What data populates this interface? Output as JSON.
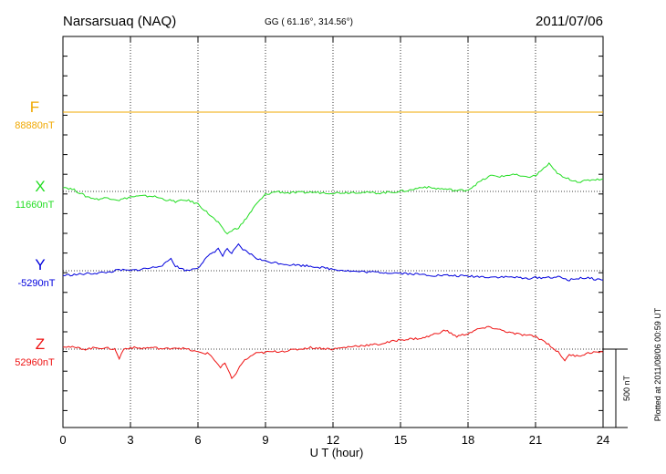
{
  "header": {
    "station": "Narsarsuaq (NAQ)",
    "coords": "GG ( 61.16°, 314.56°)",
    "date": "2011/07/06"
  },
  "plotted_note": "Plotted at 2011/08/06 00:59 UT",
  "chart_data": {
    "type": "line",
    "xlabel": "U T (hour)",
    "xlim": [
      0,
      24
    ],
    "xticks": [
      "0",
      "3",
      "6",
      "9",
      "12",
      "15",
      "18",
      "21",
      "24"
    ],
    "grid": true,
    "scale_bar": {
      "label": "500 nT",
      "value_nT": 500
    },
    "series": [
      {
        "name": "F",
        "baseline_label": "88880nT",
        "color": "#f0a800",
        "x": [
          0,
          24
        ],
        "y": [
          0,
          0
        ]
      },
      {
        "name": "X",
        "baseline_label": "11660nT",
        "color": "#22dd22",
        "x": [
          0,
          0.5,
          1,
          1.5,
          2,
          2.5,
          3,
          3.5,
          4,
          4.5,
          5,
          5.5,
          6,
          6.3,
          6.6,
          6.9,
          7.1,
          7.3,
          7.5,
          7.8,
          8,
          8.3,
          8.6,
          9,
          9.5,
          10,
          11,
          12,
          13,
          14,
          15,
          15.5,
          16,
          16.5,
          17,
          17.5,
          18,
          18.5,
          19,
          19.5,
          20,
          20.5,
          21,
          21.3,
          21.6,
          21.8,
          22.2,
          22.7,
          23,
          23.5,
          24
        ],
        "y": [
          30,
          10,
          -30,
          -50,
          -40,
          -55,
          -35,
          -30,
          -30,
          -50,
          -65,
          -55,
          -80,
          -120,
          -160,
          -200,
          -240,
          -270,
          -250,
          -230,
          -200,
          -140,
          -80,
          -20,
          0,
          -10,
          -5,
          -10,
          -5,
          -10,
          0,
          10,
          30,
          20,
          15,
          5,
          10,
          60,
          100,
          95,
          110,
          90,
          100,
          140,
          175,
          140,
          90,
          70,
          60,
          75,
          80
        ]
      },
      {
        "name": "Y",
        "baseline_label": "-5290nT",
        "color": "#0000dd",
        "x": [
          0,
          0.5,
          1,
          1.5,
          2,
          2.5,
          3,
          3.5,
          4,
          4.5,
          4.8,
          5,
          5.5,
          6,
          6.3,
          6.6,
          6.9,
          7.1,
          7.3,
          7.5,
          7.8,
          8,
          8.3,
          8.6,
          9,
          9.5,
          10,
          11,
          12,
          13,
          14,
          15,
          15.5,
          16,
          16.5,
          17,
          18,
          19,
          20,
          20.5,
          21,
          22,
          22.5,
          23,
          23.5,
          24
        ],
        "y": [
          -30,
          -25,
          -20,
          -15,
          -10,
          5,
          0,
          10,
          20,
          40,
          80,
          30,
          0,
          20,
          70,
          110,
          140,
          95,
          140,
          110,
          165,
          135,
          110,
          80,
          60,
          50,
          40,
          30,
          10,
          -5,
          -10,
          -15,
          -20,
          -25,
          -30,
          -30,
          -35,
          -40,
          -40,
          -50,
          -45,
          -40,
          -60,
          -45,
          -50,
          -60
        ]
      },
      {
        "name": "Z",
        "baseline_label": "52960nT",
        "color": "#ee1111",
        "x": [
          0,
          0.5,
          1,
          1.5,
          2,
          2.3,
          2.5,
          2.7,
          3,
          3.5,
          4,
          4.5,
          5,
          5.5,
          6,
          6.5,
          6.8,
          7,
          7.2,
          7.5,
          7.7,
          8,
          8.5,
          9,
          10,
          11,
          12,
          13,
          14,
          15,
          16,
          17,
          17.5,
          18,
          18.5,
          19,
          19.5,
          20,
          21,
          21.5,
          22,
          22.3,
          22.5,
          23,
          23.5,
          24
        ],
        "y": [
          20,
          10,
          0,
          10,
          5,
          0,
          -60,
          0,
          10,
          5,
          10,
          0,
          10,
          0,
          -20,
          -30,
          -80,
          -120,
          -90,
          -190,
          -150,
          -80,
          -30,
          -20,
          -10,
          10,
          0,
          20,
          30,
          60,
          70,
          120,
          80,
          100,
          130,
          140,
          120,
          100,
          80,
          40,
          -20,
          -70,
          -40,
          -40,
          -20,
          -20
        ]
      }
    ]
  }
}
